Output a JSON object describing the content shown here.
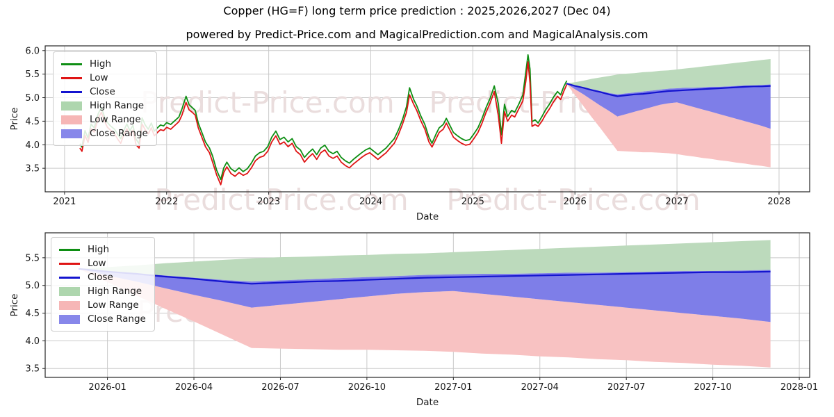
{
  "title": "Copper (HG=F) long term price prediction : 2025,2026,2027 (Dec 04)",
  "subtitle": "powered by Predict-Price.com and MagicalPrediction.com and MagicalAnalysis.com",
  "watermark": "Predict-Price.com",
  "colors": {
    "high_line": "#0e8e13",
    "low_line": "#df1414",
    "close_line": "#1414cf",
    "high_range_fill": "#bcdabc",
    "low_range_fill": "#f8c2c2",
    "close_range_fill": "#7e7ee8",
    "grid": "#c9c9c9",
    "spine": "#262626",
    "tick_text": "#1a1a1a",
    "watermark_text": "#eadddd"
  },
  "legend": {
    "items": [
      {
        "label": "High",
        "swatch": "line",
        "color": "#0e8e13"
      },
      {
        "label": "Low",
        "swatch": "line",
        "color": "#df1414"
      },
      {
        "label": "Close",
        "swatch": "line",
        "color": "#1414cf"
      },
      {
        "label": "High Range",
        "swatch": "patch",
        "color": "#aed6ae"
      },
      {
        "label": "Low Range",
        "swatch": "patch",
        "color": "#f6b6b6"
      },
      {
        "label": "Close Range",
        "swatch": "patch",
        "color": "#8787ea"
      }
    ]
  },
  "chart_data": [
    {
      "type": "line",
      "name": "full-history-and-forecast",
      "xlabel": "Date",
      "ylabel": "Price",
      "xlim": [
        2020.81,
        2028.3
      ],
      "ylim": [
        3.0,
        6.1
      ],
      "grid": true,
      "legend_position": "upper left",
      "x_ticks": [
        {
          "v": 2021,
          "label": "2021"
        },
        {
          "v": 2022,
          "label": "2022"
        },
        {
          "v": 2023,
          "label": "2023"
        },
        {
          "v": 2024,
          "label": "2024"
        },
        {
          "v": 2025,
          "label": "2025"
        },
        {
          "v": 2026,
          "label": "2026"
        },
        {
          "v": 2027,
          "label": "2027"
        },
        {
          "v": 2028,
          "label": "2028"
        }
      ],
      "y_ticks": [
        3.5,
        4.0,
        4.5,
        5.0,
        5.5,
        6.0
      ],
      "history_format": "[year_decimal, high, low]",
      "history": [
        [
          2021.15,
          4.02,
          3.93
        ],
        [
          2021.17,
          3.95,
          3.86
        ],
        [
          2021.2,
          4.3,
          4.2
        ],
        [
          2021.23,
          4.14,
          4.05
        ],
        [
          2021.26,
          4.44,
          4.34
        ],
        [
          2021.29,
          4.36,
          4.27
        ],
        [
          2021.33,
          4.66,
          4.56
        ],
        [
          2021.36,
          4.79,
          4.69
        ],
        [
          2021.39,
          4.6,
          4.51
        ],
        [
          2021.42,
          4.47,
          4.37
        ],
        [
          2021.45,
          4.4,
          4.31
        ],
        [
          2021.49,
          4.33,
          4.23
        ],
        [
          2021.52,
          4.22,
          4.12
        ],
        [
          2021.55,
          4.13,
          4.03
        ],
        [
          2021.58,
          4.3,
          4.21
        ],
        [
          2021.61,
          4.44,
          4.34
        ],
        [
          2021.64,
          4.3,
          4.2
        ],
        [
          2021.67,
          4.41,
          4.31
        ],
        [
          2021.7,
          4.12,
          4.0
        ],
        [
          2021.73,
          4.02,
          3.93
        ],
        [
          2021.76,
          4.57,
          4.44
        ],
        [
          2021.79,
          4.42,
          4.32
        ],
        [
          2021.82,
          4.33,
          4.23
        ],
        [
          2021.85,
          4.46,
          4.36
        ],
        [
          2021.88,
          4.29,
          4.19
        ],
        [
          2021.91,
          4.36,
          4.26
        ],
        [
          2021.94,
          4.42,
          4.32
        ],
        [
          2021.97,
          4.4,
          4.3
        ],
        [
          2022.0,
          4.47,
          4.37
        ],
        [
          2022.04,
          4.43,
          4.33
        ],
        [
          2022.08,
          4.51,
          4.41
        ],
        [
          2022.12,
          4.59,
          4.49
        ],
        [
          2022.15,
          4.76,
          4.63
        ],
        [
          2022.19,
          5.03,
          4.9
        ],
        [
          2022.22,
          4.85,
          4.74
        ],
        [
          2022.25,
          4.79,
          4.69
        ],
        [
          2022.28,
          4.73,
          4.63
        ],
        [
          2022.31,
          4.46,
          4.36
        ],
        [
          2022.34,
          4.29,
          4.19
        ],
        [
          2022.38,
          4.06,
          3.96
        ],
        [
          2022.42,
          3.93,
          3.83
        ],
        [
          2022.45,
          3.76,
          3.63
        ],
        [
          2022.49,
          3.46,
          3.36
        ],
        [
          2022.53,
          3.26,
          3.15
        ],
        [
          2022.56,
          3.51,
          3.41
        ],
        [
          2022.59,
          3.63,
          3.53
        ],
        [
          2022.63,
          3.49,
          3.39
        ],
        [
          2022.67,
          3.43,
          3.33
        ],
        [
          2022.71,
          3.51,
          3.41
        ],
        [
          2022.75,
          3.43,
          3.35
        ],
        [
          2022.79,
          3.49,
          3.39
        ],
        [
          2022.83,
          3.61,
          3.51
        ],
        [
          2022.87,
          3.76,
          3.66
        ],
        [
          2022.91,
          3.83,
          3.73
        ],
        [
          2022.95,
          3.86,
          3.76
        ],
        [
          2022.99,
          3.96,
          3.86
        ],
        [
          2023.03,
          4.16,
          4.06
        ],
        [
          2023.07,
          4.29,
          4.19
        ],
        [
          2023.11,
          4.11,
          4.01
        ],
        [
          2023.15,
          4.16,
          4.06
        ],
        [
          2023.19,
          4.06,
          3.96
        ],
        [
          2023.23,
          4.13,
          4.03
        ],
        [
          2023.27,
          3.96,
          3.86
        ],
        [
          2023.31,
          3.89,
          3.79
        ],
        [
          2023.35,
          3.73,
          3.63
        ],
        [
          2023.39,
          3.83,
          3.73
        ],
        [
          2023.43,
          3.91,
          3.81
        ],
        [
          2023.47,
          3.79,
          3.69
        ],
        [
          2023.51,
          3.93,
          3.83
        ],
        [
          2023.55,
          3.99,
          3.89
        ],
        [
          2023.59,
          3.86,
          3.76
        ],
        [
          2023.63,
          3.81,
          3.71
        ],
        [
          2023.67,
          3.86,
          3.76
        ],
        [
          2023.71,
          3.73,
          3.63
        ],
        [
          2023.75,
          3.66,
          3.56
        ],
        [
          2023.79,
          3.61,
          3.51
        ],
        [
          2023.83,
          3.69,
          3.59
        ],
        [
          2023.87,
          3.76,
          3.66
        ],
        [
          2023.91,
          3.83,
          3.73
        ],
        [
          2023.95,
          3.89,
          3.79
        ],
        [
          2023.99,
          3.93,
          3.83
        ],
        [
          2024.03,
          3.86,
          3.76
        ],
        [
          2024.07,
          3.79,
          3.69
        ],
        [
          2024.11,
          3.86,
          3.76
        ],
        [
          2024.15,
          3.93,
          3.83
        ],
        [
          2024.19,
          4.03,
          3.93
        ],
        [
          2024.23,
          4.13,
          4.03
        ],
        [
          2024.27,
          4.31,
          4.21
        ],
        [
          2024.31,
          4.53,
          4.43
        ],
        [
          2024.35,
          4.81,
          4.69
        ],
        [
          2024.38,
          5.21,
          5.06
        ],
        [
          2024.42,
          4.96,
          4.86
        ],
        [
          2024.45,
          4.83,
          4.73
        ],
        [
          2024.49,
          4.61,
          4.51
        ],
        [
          2024.53,
          4.43,
          4.33
        ],
        [
          2024.57,
          4.16,
          4.06
        ],
        [
          2024.6,
          4.03,
          3.95
        ],
        [
          2024.64,
          4.23,
          4.13
        ],
        [
          2024.67,
          4.36,
          4.26
        ],
        [
          2024.71,
          4.43,
          4.33
        ],
        [
          2024.74,
          4.56,
          4.46
        ],
        [
          2024.78,
          4.39,
          4.29
        ],
        [
          2024.81,
          4.26,
          4.16
        ],
        [
          2024.85,
          4.19,
          4.09
        ],
        [
          2024.89,
          4.13,
          4.03
        ],
        [
          2024.93,
          4.09,
          3.99
        ],
        [
          2024.97,
          4.11,
          4.01
        ],
        [
          2025.01,
          4.23,
          4.13
        ],
        [
          2025.05,
          4.36,
          4.26
        ],
        [
          2025.09,
          4.56,
          4.46
        ],
        [
          2025.13,
          4.79,
          4.69
        ],
        [
          2025.17,
          4.99,
          4.89
        ],
        [
          2025.21,
          5.25,
          5.13
        ],
        [
          2025.25,
          4.86,
          4.61
        ],
        [
          2025.28,
          4.21,
          4.03
        ],
        [
          2025.31,
          4.86,
          4.7
        ],
        [
          2025.34,
          4.6,
          4.5
        ],
        [
          2025.38,
          4.73,
          4.63
        ],
        [
          2025.41,
          4.69,
          4.59
        ],
        [
          2025.45,
          4.86,
          4.76
        ],
        [
          2025.49,
          5.06,
          4.93
        ],
        [
          2025.52,
          5.56,
          5.36
        ],
        [
          2025.54,
          5.91,
          5.76
        ],
        [
          2025.56,
          5.61,
          5.31
        ],
        [
          2025.58,
          4.49,
          4.39
        ],
        [
          2025.61,
          4.53,
          4.43
        ],
        [
          2025.64,
          4.46,
          4.39
        ],
        [
          2025.68,
          4.61,
          4.51
        ],
        [
          2025.71,
          4.73,
          4.63
        ],
        [
          2025.75,
          4.86,
          4.76
        ],
        [
          2025.79,
          5.01,
          4.91
        ],
        [
          2025.83,
          5.13,
          5.03
        ],
        [
          2025.86,
          5.06,
          4.96
        ],
        [
          2025.89,
          5.23,
          5.13
        ],
        [
          2025.92,
          5.36,
          5.28
        ]
      ],
      "includes_forecast": "same forecast series as second chart"
    },
    {
      "type": "area+line",
      "name": "forecast-zoom",
      "xlabel": "Date",
      "ylabel": "Price",
      "xlim": [
        2025.82,
        2028.03
      ],
      "ylim": [
        3.34,
        5.95
      ],
      "grid": true,
      "legend_position": "upper left",
      "x_ticks": [
        {
          "v": 2026.0,
          "label": "2026-01"
        },
        {
          "v": 2026.25,
          "label": "2026-04"
        },
        {
          "v": 2026.5,
          "label": "2026-07"
        },
        {
          "v": 2026.75,
          "label": "2026-10"
        },
        {
          "v": 2027.0,
          "label": "2027-01"
        },
        {
          "v": 2027.25,
          "label": "2027-04"
        },
        {
          "v": 2027.5,
          "label": "2027-07"
        },
        {
          "v": 2027.75,
          "label": "2027-10"
        },
        {
          "v": 2028.0,
          "label": "2028-01"
        }
      ],
      "y_ticks": [
        3.5,
        4.0,
        4.5,
        5.0,
        5.5
      ],
      "forecast": {
        "interval": "monthly",
        "dates": [
          "2025-12",
          "2026-01",
          "2026-02",
          "2026-03",
          "2026-04",
          "2026-05",
          "2026-06",
          "2026-07",
          "2026-08",
          "2026-09",
          "2026-10",
          "2026-11",
          "2026-12",
          "2027-01",
          "2027-02",
          "2027-03",
          "2027-04",
          "2027-05",
          "2027-06",
          "2027-07",
          "2027-08",
          "2027-09",
          "2027-10",
          "2027-11",
          "2027-12"
        ],
        "high_range_max": [
          5.3,
          5.33,
          5.36,
          5.4,
          5.43,
          5.46,
          5.49,
          5.51,
          5.52,
          5.54,
          5.55,
          5.57,
          5.58,
          5.6,
          5.62,
          5.64,
          5.66,
          5.68,
          5.7,
          5.72,
          5.74,
          5.76,
          5.78,
          5.8,
          5.82
        ],
        "close_range_max": [
          5.3,
          5.26,
          5.22,
          5.18,
          5.14,
          5.1,
          5.07,
          5.09,
          5.11,
          5.13,
          5.15,
          5.17,
          5.19,
          5.2,
          5.21,
          5.21,
          5.22,
          5.23,
          5.23,
          5.24,
          5.25,
          5.26,
          5.26,
          5.27,
          5.28
        ],
        "close": [
          5.3,
          5.25,
          5.21,
          5.16,
          5.12,
          5.07,
          5.03,
          5.05,
          5.07,
          5.08,
          5.1,
          5.12,
          5.14,
          5.15,
          5.16,
          5.17,
          5.18,
          5.19,
          5.2,
          5.21,
          5.22,
          5.23,
          5.24,
          5.24,
          5.25
        ],
        "close_range_min": [
          5.3,
          5.18,
          5.07,
          4.95,
          4.83,
          4.72,
          4.6,
          4.65,
          4.7,
          4.75,
          4.8,
          4.85,
          4.88,
          4.9,
          4.85,
          4.8,
          4.75,
          4.7,
          4.65,
          4.6,
          4.55,
          4.5,
          4.45,
          4.4,
          4.34
        ],
        "low_range_min": [
          5.3,
          5.06,
          4.82,
          4.58,
          4.35,
          4.11,
          3.87,
          3.86,
          3.85,
          3.84,
          3.84,
          3.83,
          3.82,
          3.8,
          3.77,
          3.75,
          3.72,
          3.7,
          3.67,
          3.65,
          3.62,
          3.6,
          3.57,
          3.55,
          3.52
        ]
      }
    }
  ]
}
